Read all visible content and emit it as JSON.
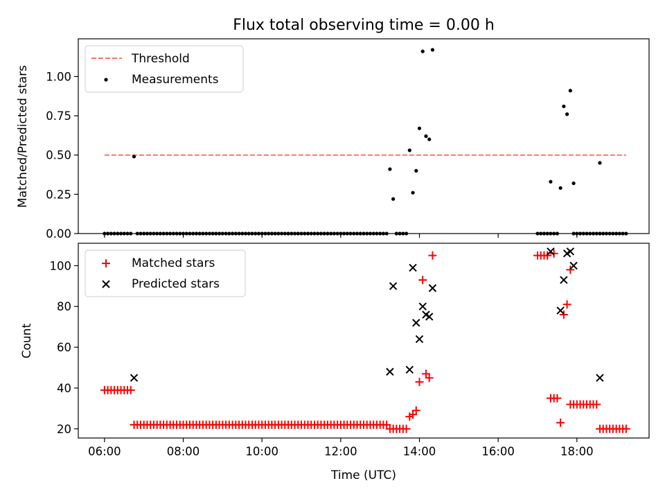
{
  "chart_data": [
    {
      "type": "scatter",
      "title": "Flux total observing time = 0.00 h",
      "xlabel": "",
      "ylabel": "Matched/Predicted stars",
      "xlim": [
        "05:20",
        "19:50"
      ],
      "ylim": [
        0,
        1.24
      ],
      "yticks": [
        "0.00",
        "0.25",
        "0.50",
        "0.75",
        "1.00"
      ],
      "legend_position": "top-left",
      "legend": [
        "Threshold",
        "Measurements"
      ],
      "threshold": {
        "name": "Threshold",
        "y": 0.5,
        "x_start": "06:00",
        "x_end": "19:15",
        "color": "#ff7070",
        "style": "dashed"
      },
      "series": [
        {
          "name": "Measurements",
          "color": "#000000",
          "marker": "dot",
          "points": [
            [
              "06:45",
              0.49
            ],
            [
              "13:15",
              0.41
            ],
            [
              "13:20",
              0.22
            ],
            [
              "13:45",
              0.53
            ],
            [
              "13:50",
              0.26
            ],
            [
              "13:55",
              0.4
            ],
            [
              "14:00",
              0.67
            ],
            [
              "14:05",
              1.16
            ],
            [
              "14:10",
              0.62
            ],
            [
              "14:15",
              0.6
            ],
            [
              "14:20",
              1.17
            ],
            [
              "17:20",
              0.33
            ],
            [
              "17:35",
              0.29
            ],
            [
              "17:40",
              0.81
            ],
            [
              "17:45",
              0.76
            ],
            [
              "17:50",
              0.91
            ],
            [
              "17:55",
              0.32
            ],
            [
              "18:35",
              0.45
            ]
          ],
          "zero_ranges": [
            [
              "06:00",
              "06:40"
            ],
            [
              "06:50",
              "13:10"
            ],
            [
              "13:25",
              "13:40"
            ],
            [
              "17:00",
              "17:30"
            ],
            [
              "17:55",
              "18:30"
            ],
            [
              "18:35",
              "19:15"
            ]
          ]
        }
      ]
    },
    {
      "type": "scatter",
      "title": "",
      "xlabel": "Time (UTC)",
      "ylabel": "Count",
      "xlim": [
        "05:20",
        "19:50"
      ],
      "ylim": [
        15.5,
        111
      ],
      "xticks": [
        "06:00",
        "08:00",
        "10:00",
        "12:00",
        "14:00",
        "16:00",
        "18:00"
      ],
      "yticks": [
        "20",
        "40",
        "60",
        "80",
        "100"
      ],
      "legend_position": "top-left",
      "legend": [
        "Matched stars",
        "Predicted stars"
      ],
      "series": [
        {
          "name": "Matched stars",
          "color": "#ff0000",
          "marker": "plus",
          "runs": [
            {
              "from": "06:00",
              "to": "06:40",
              "y": 39
            },
            {
              "from": "06:45",
              "to": "13:10",
              "y": 22
            },
            {
              "from": "13:15",
              "to": "13:40",
              "y": 20
            },
            {
              "from": "18:35",
              "to": "19:15",
              "y": 20
            },
            {
              "from": "17:20",
              "to": "17:30",
              "y": 35
            },
            {
              "from": "17:50",
              "to": "18:30",
              "y": 32
            },
            {
              "from": "17:00",
              "to": "17:15",
              "y": 105
            }
          ],
          "points": [
            [
              "13:45",
              26
            ],
            [
              "13:50",
              27
            ],
            [
              "13:55",
              29
            ],
            [
              "14:00",
              43
            ],
            [
              "14:10",
              47
            ],
            [
              "14:15",
              45
            ],
            [
              "14:05",
              93
            ],
            [
              "14:20",
              105
            ],
            [
              "17:35",
              23
            ],
            [
              "17:40",
              76
            ],
            [
              "17:45",
              81
            ],
            [
              "17:50",
              98
            ],
            [
              "17:25",
              106
            ],
            [
              "17:15",
              105
            ]
          ]
        },
        {
          "name": "Predicted stars",
          "color": "#000000",
          "marker": "x",
          "points": [
            [
              "06:45",
              45
            ],
            [
              "13:15",
              48
            ],
            [
              "13:20",
              90
            ],
            [
              "13:45",
              49
            ],
            [
              "13:50",
              99
            ],
            [
              "13:55",
              72
            ],
            [
              "14:00",
              64
            ],
            [
              "14:05",
              80
            ],
            [
              "14:10",
              76
            ],
            [
              "14:15",
              75
            ],
            [
              "14:20",
              89
            ],
            [
              "17:20",
              107
            ],
            [
              "17:35",
              78
            ],
            [
              "17:40",
              93
            ],
            [
              "17:45",
              106
            ],
            [
              "17:50",
              107
            ],
            [
              "17:55",
              100
            ],
            [
              "18:35",
              45
            ]
          ]
        }
      ]
    }
  ]
}
